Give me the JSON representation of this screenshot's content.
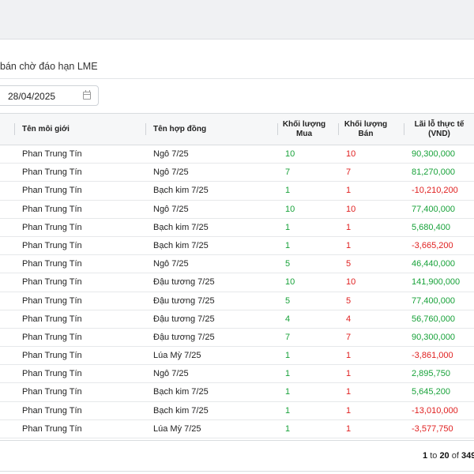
{
  "page": {
    "title": "bán chờ đáo hạn LME"
  },
  "filter": {
    "date_value": "28/04/2025",
    "arrow": "›"
  },
  "table": {
    "headers": {
      "broker": "Tên môi giới",
      "contract": "Tên hợp đồng",
      "buy_line1": "Khối lượng",
      "buy_line2": "Mua",
      "sell_line1": "Khối lượng",
      "sell_line2": "Bán",
      "pnl_line1": "Lãi lỗ thực tế",
      "pnl_line2": "(VND)"
    },
    "rows": [
      {
        "broker": "Phan Trung Tín",
        "contract": "Ngô 7/25",
        "buy": "10",
        "sell": "10",
        "pnl": "90,300,000",
        "sign": "pos"
      },
      {
        "broker": "Phan Trung Tín",
        "contract": "Ngô 7/25",
        "buy": "7",
        "sell": "7",
        "pnl": "81,270,000",
        "sign": "pos"
      },
      {
        "broker": "Phan Trung Tín",
        "contract": "Bạch kim 7/25",
        "buy": "1",
        "sell": "1",
        "pnl": "-10,210,200",
        "sign": "neg"
      },
      {
        "broker": "Phan Trung Tín",
        "contract": "Ngô 7/25",
        "buy": "10",
        "sell": "10",
        "pnl": "77,400,000",
        "sign": "pos"
      },
      {
        "broker": "Phan Trung Tín",
        "contract": "Bạch kim 7/25",
        "buy": "1",
        "sell": "1",
        "pnl": "5,680,400",
        "sign": "pos"
      },
      {
        "broker": "Phan Trung Tín",
        "contract": "Bạch kim 7/25",
        "buy": "1",
        "sell": "1",
        "pnl": "-3,665,200",
        "sign": "neg"
      },
      {
        "broker": "Phan Trung Tín",
        "contract": "Ngô 7/25",
        "buy": "5",
        "sell": "5",
        "pnl": "46,440,000",
        "sign": "pos"
      },
      {
        "broker": "Phan Trung Tín",
        "contract": "Đậu tương 7/25",
        "buy": "10",
        "sell": "10",
        "pnl": "141,900,000",
        "sign": "pos"
      },
      {
        "broker": "Phan Trung Tín",
        "contract": "Đậu tương 7/25",
        "buy": "5",
        "sell": "5",
        "pnl": "77,400,000",
        "sign": "pos"
      },
      {
        "broker": "Phan Trung Tín",
        "contract": "Đậu tương 7/25",
        "buy": "4",
        "sell": "4",
        "pnl": "56,760,000",
        "sign": "pos"
      },
      {
        "broker": "Phan Trung Tín",
        "contract": "Đậu tương 7/25",
        "buy": "7",
        "sell": "7",
        "pnl": "90,300,000",
        "sign": "pos"
      },
      {
        "broker": "Phan Trung Tín",
        "contract": "Lúa Mỳ 7/25",
        "buy": "1",
        "sell": "1",
        "pnl": "-3,861,000",
        "sign": "neg"
      },
      {
        "broker": "Phan Trung Tín",
        "contract": "Ngô 7/25",
        "buy": "1",
        "sell": "1",
        "pnl": "2,895,750",
        "sign": "pos"
      },
      {
        "broker": "Phan Trung Tín",
        "contract": "Bạch kim 7/25",
        "buy": "1",
        "sell": "1",
        "pnl": "5,645,200",
        "sign": "pos"
      },
      {
        "broker": "Phan Trung Tín",
        "contract": "Bạch kim 7/25",
        "buy": "1",
        "sell": "1",
        "pnl": "-13,010,000",
        "sign": "neg"
      },
      {
        "broker": "Phan Trung Tín",
        "contract": "Lúa Mỳ 7/25",
        "buy": "1",
        "sell": "1",
        "pnl": "-3,577,750",
        "sign": "neg"
      }
    ]
  },
  "pagination": {
    "from": "1",
    "to_word": "to",
    "to": "20",
    "of_word": "of",
    "total": "349"
  },
  "colors": {
    "positive": "#18a23a",
    "negative": "#e02020"
  }
}
